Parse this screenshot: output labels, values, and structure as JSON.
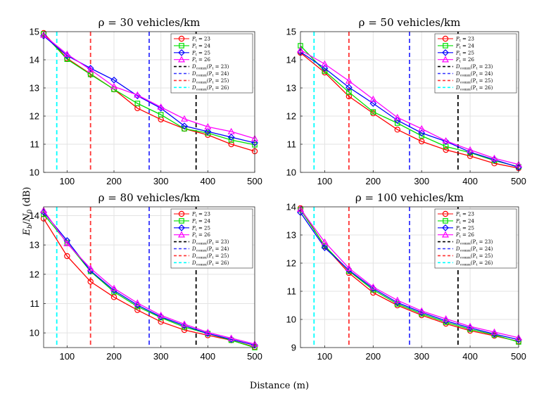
{
  "figure": {
    "xlabel": "Distance (m)",
    "ylabel": "E_b/N_0 (dB)",
    "ylabel_parts": {
      "E": "E",
      "b": "b",
      "slash": "/",
      "N": "N",
      "zero": "0",
      "unit": " (dB)"
    }
  },
  "colors": {
    "p23": "#ff0000",
    "p24": "#00e000",
    "p25": "#0000ff",
    "p26": "#ff00ff",
    "d23": "#000000",
    "d24": "#3333ff",
    "d25": "#ff3333",
    "d26": "#00ffff"
  },
  "legend_entries": [
    {
      "key": "p23",
      "main": "P",
      "sub": "t",
      "tail": " = 23"
    },
    {
      "key": "p24",
      "main": "P",
      "sub": "t",
      "tail": " = 24"
    },
    {
      "key": "p25",
      "main": "P",
      "sub": "t",
      "tail": " = 25"
    },
    {
      "key": "p26",
      "main": "P",
      "sub": "t",
      "tail": " = 26"
    },
    {
      "key": "d23",
      "main": "D",
      "sub": "comm",
      "tail": "(P",
      "sub2": "t",
      "tail2": " = 23)"
    },
    {
      "key": "d24",
      "main": "D",
      "sub": "comm",
      "tail": "(P",
      "sub2": "t",
      "tail2": " = 24)"
    },
    {
      "key": "d25",
      "main": "D",
      "sub": "comm",
      "tail": "(P",
      "sub2": "t",
      "tail2": " = 25)"
    },
    {
      "key": "d26",
      "main": "D",
      "sub": "comm",
      "tail": "(P",
      "sub2": "t",
      "tail2": " = 26)"
    }
  ],
  "chart_data": [
    {
      "type": "line",
      "title": "ρ = 30 vehicles/km",
      "x": [
        50,
        100,
        150,
        200,
        250,
        300,
        350,
        400,
        450,
        500
      ],
      "xlim": [
        50,
        500
      ],
      "ylim": [
        10,
        15
      ],
      "xticks": [
        100,
        200,
        300,
        400,
        500
      ],
      "yticks": [
        10,
        11,
        12,
        13,
        14,
        15
      ],
      "grid": true,
      "legend_position": "top-right",
      "series": [
        {
          "name": "Pt = 23",
          "key": "p23",
          "marker": "circle",
          "values": [
            14.95,
            14.05,
            13.5,
            12.95,
            12.28,
            11.88,
            11.55,
            11.33,
            11.0,
            10.75
          ]
        },
        {
          "name": "Pt = 24",
          "key": "p24",
          "marker": "square",
          "values": [
            14.92,
            14.02,
            13.48,
            12.95,
            12.45,
            12.05,
            11.55,
            11.4,
            11.15,
            10.98
          ]
        },
        {
          "name": "Pt = 25",
          "key": "p25",
          "marker": "diamond",
          "values": [
            14.85,
            14.15,
            13.7,
            13.28,
            12.72,
            12.28,
            11.65,
            11.45,
            11.25,
            11.05
          ]
        },
        {
          "name": "Pt = 26",
          "key": "p26",
          "marker": "triangle",
          "values": [
            14.88,
            14.2,
            13.65,
            13.05,
            12.75,
            12.32,
            11.9,
            11.62,
            11.45,
            11.2
          ]
        }
      ],
      "vlines": [
        {
          "name": "Dcomm(Pt = 23)",
          "key": "d23",
          "x": 375
        },
        {
          "name": "Dcomm(Pt = 24)",
          "key": "d24",
          "x": 275
        },
        {
          "name": "Dcomm(Pt = 25)",
          "key": "d25",
          "x": 150
        },
        {
          "name": "Dcomm(Pt = 26)",
          "key": "d26",
          "x": 78
        }
      ]
    },
    {
      "type": "line",
      "title": "ρ = 50 vehicles/km",
      "x": [
        50,
        100,
        150,
        200,
        250,
        300,
        350,
        400,
        450,
        500
      ],
      "xlim": [
        50,
        500
      ],
      "ylim": [
        10,
        15
      ],
      "xticks": [
        100,
        200,
        300,
        400,
        500
      ],
      "yticks": [
        10,
        11,
        12,
        13,
        14,
        15
      ],
      "grid": true,
      "legend_position": "top-right",
      "series": [
        {
          "name": "Pt = 23",
          "key": "p23",
          "marker": "circle",
          "values": [
            14.25,
            13.55,
            12.7,
            12.1,
            11.52,
            11.1,
            10.8,
            10.58,
            10.32,
            10.15
          ]
        },
        {
          "name": "Pt = 24",
          "key": "p24",
          "marker": "square",
          "values": [
            14.5,
            13.6,
            12.85,
            12.15,
            11.75,
            11.3,
            10.92,
            10.7,
            10.42,
            10.2
          ]
        },
        {
          "name": "Pt = 25",
          "key": "p25",
          "marker": "diamond",
          "values": [
            14.28,
            13.7,
            13.02,
            12.45,
            11.85,
            11.4,
            11.1,
            10.72,
            10.45,
            10.18
          ]
        },
        {
          "name": "Pt = 26",
          "key": "p26",
          "marker": "triangle",
          "values": [
            14.35,
            13.85,
            13.25,
            12.6,
            11.95,
            11.55,
            11.12,
            10.8,
            10.5,
            10.28
          ]
        }
      ],
      "vlines": [
        {
          "name": "Dcomm(Pt = 23)",
          "key": "d23",
          "x": 375
        },
        {
          "name": "Dcomm(Pt = 24)",
          "key": "d24",
          "x": 275
        },
        {
          "name": "Dcomm(Pt = 25)",
          "key": "d25",
          "x": 150
        },
        {
          "name": "Dcomm(Pt = 26)",
          "key": "d26",
          "x": 78
        }
      ]
    },
    {
      "type": "line",
      "title": "ρ = 80 vehicles/km",
      "x": [
        50,
        100,
        150,
        200,
        250,
        300,
        350,
        400,
        450,
        500
      ],
      "xlim": [
        50,
        500
      ],
      "ylim": [
        9.5,
        14.3
      ],
      "xticks": [
        100,
        200,
        300,
        400,
        500
      ],
      "yticks": [
        10,
        11,
        12,
        13,
        14
      ],
      "grid": true,
      "legend_position": "top-right",
      "series": [
        {
          "name": "Pt = 23",
          "key": "p23",
          "marker": "circle",
          "values": [
            13.9,
            12.62,
            11.75,
            11.22,
            10.78,
            10.38,
            10.1,
            9.92,
            9.75,
            9.52
          ]
        },
        {
          "name": "Pt = 24",
          "key": "p24",
          "marker": "square",
          "values": [
            14.05,
            13.08,
            12.1,
            11.4,
            10.9,
            10.52,
            10.2,
            9.98,
            9.75,
            9.5
          ]
        },
        {
          "name": "Pt = 25",
          "key": "p25",
          "marker": "diamond",
          "values": [
            14.12,
            13.15,
            12.12,
            11.45,
            10.95,
            10.55,
            10.25,
            9.98,
            9.78,
            9.58
          ]
        },
        {
          "name": "Pt = 26",
          "key": "p26",
          "marker": "triangle",
          "values": [
            14.18,
            13.05,
            12.2,
            11.52,
            11.02,
            10.6,
            10.3,
            10.02,
            9.82,
            9.62
          ]
        }
      ],
      "vlines": [
        {
          "name": "Dcomm(Pt = 23)",
          "key": "d23",
          "x": 375
        },
        {
          "name": "Dcomm(Pt = 24)",
          "key": "d24",
          "x": 275
        },
        {
          "name": "Dcomm(Pt = 25)",
          "key": "d25",
          "x": 150
        },
        {
          "name": "Dcomm(Pt = 26)",
          "key": "d26",
          "x": 78
        }
      ]
    },
    {
      "type": "line",
      "title": "ρ = 100 vehicles/km",
      "x": [
        50,
        100,
        150,
        200,
        250,
        300,
        350,
        400,
        450,
        500
      ],
      "xlim": [
        50,
        500
      ],
      "ylim": [
        9,
        14
      ],
      "xticks": [
        100,
        200,
        300,
        400,
        500
      ],
      "yticks": [
        9,
        10,
        11,
        12,
        13,
        14
      ],
      "grid": true,
      "legend_position": "top-right",
      "series": [
        {
          "name": "Pt = 23",
          "key": "p23",
          "marker": "circle",
          "values": [
            13.95,
            12.6,
            11.65,
            10.95,
            10.5,
            10.15,
            9.85,
            9.6,
            9.42,
            9.22
          ]
        },
        {
          "name": "Pt = 24",
          "key": "p24",
          "marker": "square",
          "values": [
            13.9,
            12.62,
            11.72,
            11.05,
            10.55,
            10.2,
            9.9,
            9.65,
            9.45,
            9.2
          ]
        },
        {
          "name": "Pt = 25",
          "key": "p25",
          "marker": "diamond",
          "values": [
            13.8,
            12.55,
            11.75,
            11.1,
            10.6,
            10.25,
            9.95,
            9.7,
            9.48,
            9.28
          ]
        },
        {
          "name": "Pt = 26",
          "key": "p26",
          "marker": "triangle",
          "values": [
            13.92,
            12.75,
            11.82,
            11.15,
            10.68,
            10.3,
            10.02,
            9.75,
            9.55,
            9.35
          ]
        }
      ],
      "vlines": [
        {
          "name": "Dcomm(Pt = 23)",
          "key": "d23",
          "x": 375
        },
        {
          "name": "Dcomm(Pt = 24)",
          "key": "d24",
          "x": 275
        },
        {
          "name": "Dcomm(Pt = 25)",
          "key": "d25",
          "x": 150
        },
        {
          "name": "Dcomm(Pt = 26)",
          "key": "d26",
          "x": 78
        }
      ]
    }
  ]
}
